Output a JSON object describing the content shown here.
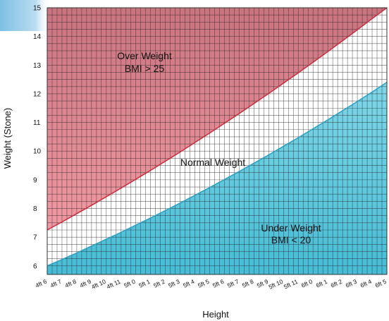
{
  "chart_data": {
    "type": "area",
    "xlabel": "Height",
    "ylabel": "Weight (Stone)",
    "categories": [
      "4ft 6",
      "4ft 7",
      "4ft 8",
      "4ft 9",
      "4ft 10",
      "4ft 11",
      "5ft 0",
      "5ft 1",
      "5ft 2",
      "5ft 3",
      "5ft 4",
      "5ft 5",
      "5ft 6",
      "5ft 7",
      "5ft 8",
      "5ft 9",
      "5ft 10",
      "5ft 11",
      "6ft 0",
      "6ft 1",
      "6ft 2",
      "6ft 3",
      "6ft 4",
      "6ft 5"
    ],
    "y_ticks": [
      "6",
      "7",
      "8",
      "9",
      "10",
      "11",
      "12",
      "13",
      "14",
      "15"
    ],
    "ylim": [
      5.7,
      15
    ],
    "grid": true,
    "series": [
      {
        "name": "BMI 20 boundary",
        "values": [
          6.0,
          6.22,
          6.45,
          6.69,
          6.93,
          7.17,
          7.42,
          7.67,
          7.93,
          8.19,
          8.46,
          8.73,
          9.01,
          9.29,
          9.58,
          9.87,
          10.17,
          10.47,
          10.78,
          11.09,
          11.41,
          11.73,
          12.06,
          12.4
        ]
      },
      {
        "name": "BMI 25 boundary",
        "values": [
          7.25,
          7.53,
          7.82,
          8.11,
          8.41,
          8.71,
          9.02,
          9.33,
          9.65,
          9.97,
          10.3,
          10.63,
          10.97,
          11.31,
          11.66,
          12.01,
          12.37,
          12.73,
          13.1,
          13.47,
          13.85,
          14.23,
          14.62,
          15.0
        ]
      }
    ],
    "regions": {
      "over": {
        "line1": "Over Weight",
        "line2": "BMI > 25"
      },
      "normal": {
        "line1": "Normal Weight"
      },
      "under": {
        "line1": "Under Weight",
        "line2": "BMI < 20"
      }
    },
    "colors": {
      "over": "#e88d97",
      "over_top": "#c9737f",
      "normal": "#ffffff",
      "under": "#5bc8de",
      "under_line": "#2a9fc4",
      "over_line": "#cc2a3a",
      "grid": "#2a2a2a",
      "banner": "#8ecae8"
    }
  }
}
